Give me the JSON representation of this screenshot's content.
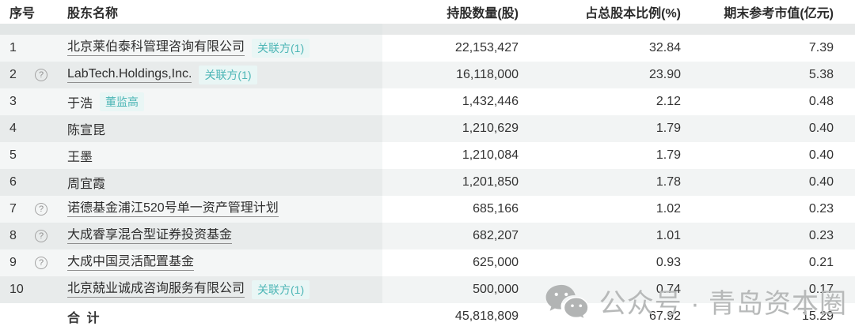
{
  "table": {
    "columns": [
      {
        "key": "index",
        "label": "序号"
      },
      {
        "key": "name",
        "label": "股东名称"
      },
      {
        "key": "shares",
        "label": "持股数量(股)"
      },
      {
        "key": "pct",
        "label": "占总股本比例(%)"
      },
      {
        "key": "value",
        "label": "期末参考市值(亿元)"
      }
    ],
    "rows": [
      {
        "index": "1",
        "name": "北京莱伯泰科管理咨询有限公司",
        "linked": true,
        "help": false,
        "tag": "关联方(1)",
        "tag_type": "related",
        "shares": "22,153,427",
        "pct": "32.84",
        "value": "7.39"
      },
      {
        "index": "2",
        "name": "LabTech.Holdings,Inc.",
        "linked": true,
        "help": true,
        "tag": "关联方(1)",
        "tag_type": "related",
        "shares": "16,118,000",
        "pct": "23.90",
        "value": "5.38"
      },
      {
        "index": "3",
        "name": "于浩",
        "linked": false,
        "help": false,
        "tag": "董监高",
        "tag_type": "exec",
        "shares": "1,432,446",
        "pct": "2.12",
        "value": "0.48"
      },
      {
        "index": "4",
        "name": "陈宣昆",
        "linked": false,
        "help": false,
        "tag": "",
        "tag_type": "",
        "shares": "1,210,629",
        "pct": "1.79",
        "value": "0.40"
      },
      {
        "index": "5",
        "name": "王墨",
        "linked": false,
        "help": false,
        "tag": "",
        "tag_type": "",
        "shares": "1,210,084",
        "pct": "1.79",
        "value": "0.40"
      },
      {
        "index": "6",
        "name": "周宜霞",
        "linked": false,
        "help": false,
        "tag": "",
        "tag_type": "",
        "shares": "1,201,850",
        "pct": "1.78",
        "value": "0.40"
      },
      {
        "index": "7",
        "name": "诺德基金浦江520号单一资产管理计划",
        "linked": true,
        "help": true,
        "tag": "",
        "tag_type": "",
        "shares": "685,166",
        "pct": "1.02",
        "value": "0.23"
      },
      {
        "index": "8",
        "name": "大成睿享混合型证券投资基金",
        "linked": true,
        "help": true,
        "tag": "",
        "tag_type": "",
        "shares": "682,207",
        "pct": "1.01",
        "value": "0.23"
      },
      {
        "index": "9",
        "name": "大成中国灵活配置基金",
        "linked": true,
        "help": true,
        "tag": "",
        "tag_type": "",
        "shares": "625,000",
        "pct": "0.93",
        "value": "0.21"
      },
      {
        "index": "10",
        "name": "北京兢业诚成咨询服务有限公司",
        "linked": true,
        "help": false,
        "tag": "关联方(1)",
        "tag_type": "related",
        "shares": "500,000",
        "pct": "0.74",
        "value": "0.17"
      }
    ],
    "total": {
      "label": "合 计",
      "shares": "45,818,809",
      "pct": "67.92",
      "value": "15.29"
    }
  },
  "icons": {
    "help": "?"
  },
  "watermark": {
    "text": "公众号 · 青岛资本圈",
    "icon": "wechat-icon"
  },
  "colors": {
    "tag_text": "#4db6b6",
    "tag_bg": "#e9f6f5",
    "stripe_left_odd": "#f4f6f6",
    "stripe_left_even": "#e8ebeb",
    "stripe_right_odd": "#ffffff",
    "stripe_right_even": "#f2f4f4",
    "separator": "#e2e6e6",
    "watermark_gray": "#b7b9b9",
    "body_text": "#333333"
  }
}
